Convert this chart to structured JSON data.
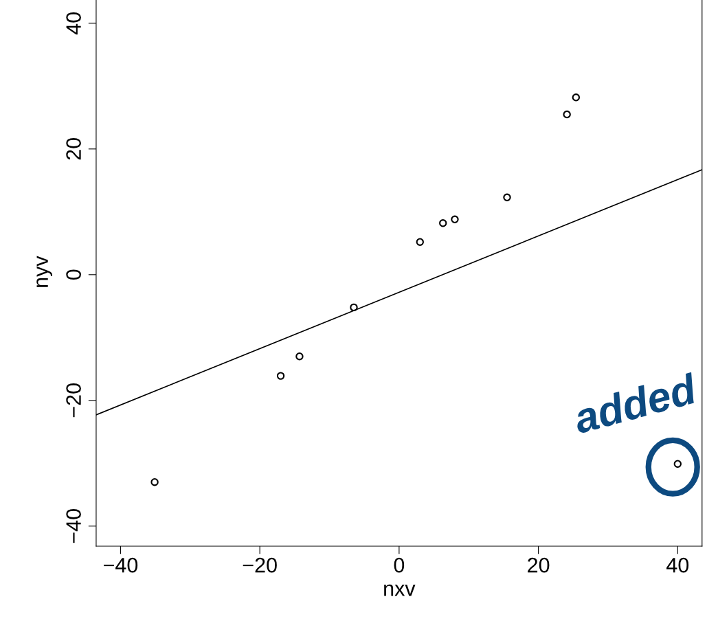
{
  "chart_data": {
    "type": "scatter",
    "xlabel": "nxv",
    "ylabel": "nyv",
    "xlim": [
      -43.5,
      43.5
    ],
    "ylim": [
      -43.2,
      44
    ],
    "xticks": [
      -40,
      -20,
      0,
      20,
      40
    ],
    "yticks": [
      -40,
      -20,
      0,
      20,
      40
    ],
    "grid": false,
    "series": [
      {
        "color": "#000000",
        "marker": "circle",
        "x": [
          -35.1,
          -17.0,
          -14.3,
          -6.5,
          3.0,
          6.3,
          8.0,
          15.5,
          24.1,
          25.4,
          40.0
        ],
        "values": [
          -33.0,
          -16.1,
          -13.0,
          -5.2,
          5.2,
          8.2,
          8.8,
          12.3,
          25.5,
          28.2,
          -30.1
        ]
      },
      {
        "type": "line",
        "color": "#000000",
        "marker": "none",
        "line_style": "solid",
        "x": [
          -43.5,
          43.5
        ],
        "values": [
          -22.3,
          16.7
        ]
      }
    ],
    "annotations": [
      {
        "text": "added",
        "x": 40.0,
        "y": -30.1
      }
    ]
  }
}
